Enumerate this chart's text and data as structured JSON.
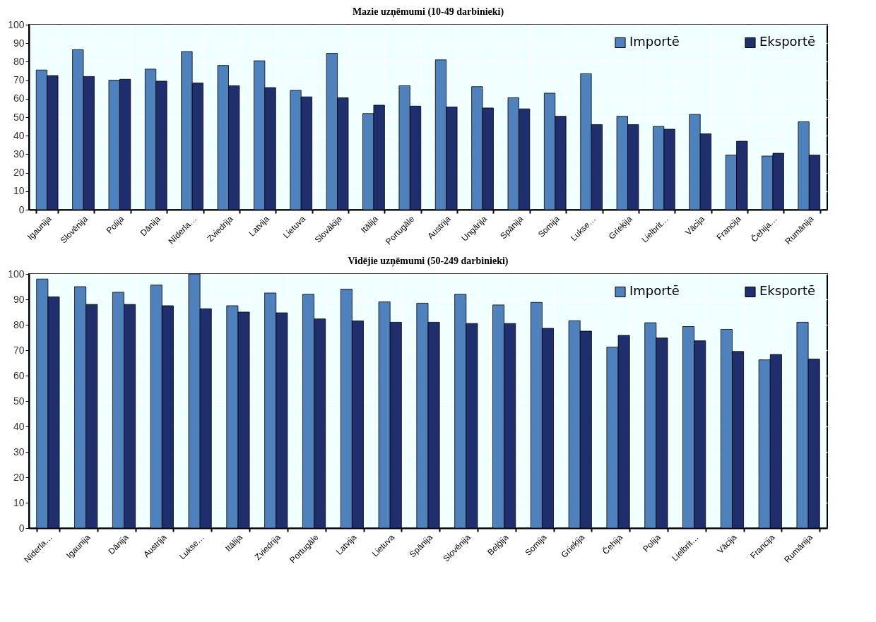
{
  "chart_data": [
    {
      "type": "bar",
      "title": "Mazie uzņēmumi (10-49 darbinieki)",
      "categories": [
        "Igaunija",
        "Slovēnija",
        "Polija",
        "Dānija",
        "Nīderla…",
        "Zviedrija",
        "Latvija",
        "Lietuva",
        "Slovākija",
        "Itālija",
        "Portugāle",
        "Austrija",
        "Ungārija",
        "Spānija",
        "Somija",
        "Lukse…",
        "Grieķija",
        "Lielbrit…",
        "Vācija",
        "Francija",
        "Čehija…",
        "Rumānija"
      ],
      "series": [
        {
          "name": "Importē",
          "color": "#4f81bd",
          "values": [
            75.5,
            86.5,
            70,
            76,
            85.5,
            78,
            80.5,
            64.5,
            84.5,
            52,
            67,
            81,
            66.5,
            60.5,
            63,
            73.5,
            50.5,
            45,
            51.5,
            29.5,
            29,
            47.5
          ]
        },
        {
          "name": "Eksportē",
          "color": "#1f2f6e",
          "values": [
            72.5,
            72,
            70.5,
            69.5,
            68.5,
            67,
            66,
            61,
            60.5,
            56.5,
            56,
            55.5,
            55,
            54.5,
            50.5,
            46,
            46,
            43.5,
            41,
            37,
            30.5,
            29.5
          ]
        }
      ],
      "ylim": [
        0,
        100
      ],
      "yticks": [
        0,
        10,
        20,
        30,
        40,
        50,
        60,
        70,
        80,
        90,
        100
      ],
      "grid": true,
      "legend": "top right"
    },
    {
      "type": "bar",
      "title": "Vidējie uzņēmumi (50-249 darbinieki)",
      "categories": [
        "Nīderla…",
        "Igaunija",
        "Dānija",
        "Austrija",
        "Lukse…",
        "Itālija",
        "Zviedrija",
        "Portugāle",
        "Latvija",
        "Lietuva",
        "Spānija",
        "Slovēnija",
        "Beļģija",
        "Somija",
        "Grieķija",
        "Čehija",
        "Polija",
        "Lielbrit…",
        "Vācija",
        "Francija",
        "Rumānija"
      ],
      "series": [
        {
          "name": "Importē",
          "color": "#4f81bd",
          "values": [
            98,
            95,
            92.8,
            95.6,
            100,
            87.5,
            92.5,
            92,
            94,
            89,
            88.5,
            92,
            87.8,
            88.8,
            81.6,
            71.2,
            80.8,
            79.3,
            78.2,
            66.2,
            81
          ]
        },
        {
          "name": "Eksportē",
          "color": "#1f2f6e",
          "values": [
            91,
            88,
            88,
            87.5,
            86.3,
            85,
            84.7,
            82.3,
            81.5,
            81,
            81,
            80.5,
            80.5,
            78.6,
            77.5,
            75.8,
            74.8,
            73.7,
            69.5,
            68.3,
            66.5
          ]
        }
      ],
      "ylim": [
        0,
        100
      ],
      "yticks": [
        0,
        10,
        20,
        30,
        40,
        50,
        60,
        70,
        80,
        90,
        100
      ],
      "grid": true,
      "legend": "top right"
    }
  ]
}
